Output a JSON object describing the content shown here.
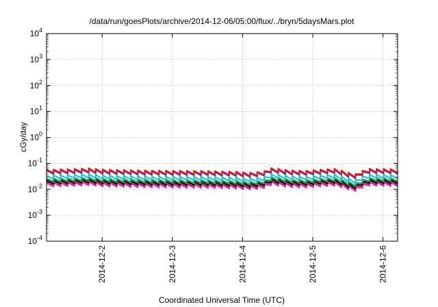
{
  "chart_data": {
    "type": "line",
    "title": "/data/run/goesPlots/archive/2014-12-06/05:00/flux/../bryn/5daysMars.plot",
    "xlabel": "Coordinated Universal Time (UTC)",
    "ylabel": "cGy/day",
    "yscale": "log",
    "ylim": [
      0.0001,
      10000
    ],
    "y_ticks": [
      {
        "base": "10",
        "exp": "-4"
      },
      {
        "base": "10",
        "exp": "-3"
      },
      {
        "base": "10",
        "exp": "-2"
      },
      {
        "base": "10",
        "exp": "-1"
      },
      {
        "base": "10",
        "exp": "0"
      },
      {
        "base": "10",
        "exp": "1"
      },
      {
        "base": "10",
        "exp": "2"
      },
      {
        "base": "10",
        "exp": "3"
      },
      {
        "base": "10",
        "exp": "4"
      }
    ],
    "xlim": [
      "2014-12-01T05:00",
      "2014-12-06T05:00"
    ],
    "x_ticks": [
      "2014-12-2",
      "2014-12-3",
      "2014-12-4",
      "2014-12-5",
      "2014-12-6"
    ],
    "x_tick_dates": [
      "2014-12-02",
      "2014-12-03",
      "2014-12-04",
      "2014-12-05",
      "2014-12-06"
    ],
    "grid": true,
    "cycle_hours": 2.4,
    "sawtooth_ratio": 0.72,
    "envelope": [
      {
        "t": "2014-12-01T05:00",
        "v": 0.055
      },
      {
        "t": "2014-12-01T14:00",
        "v": 0.058
      },
      {
        "t": "2014-12-01T20:00",
        "v": 0.062
      },
      {
        "t": "2014-12-02T00:00",
        "v": 0.056
      },
      {
        "t": "2014-12-02T12:00",
        "v": 0.052
      },
      {
        "t": "2014-12-03T00:00",
        "v": 0.05
      },
      {
        "t": "2014-12-03T12:00",
        "v": 0.049
      },
      {
        "t": "2014-12-03T22:00",
        "v": 0.046
      },
      {
        "t": "2014-12-04T02:00",
        "v": 0.042
      },
      {
        "t": "2014-12-04T07:00",
        "v": 0.046
      },
      {
        "t": "2014-12-04T10:00",
        "v": 0.064
      },
      {
        "t": "2014-12-04T16:00",
        "v": 0.052
      },
      {
        "t": "2014-12-04T22:00",
        "v": 0.05
      },
      {
        "t": "2014-12-05T02:00",
        "v": 0.055
      },
      {
        "t": "2014-12-05T08:00",
        "v": 0.06
      },
      {
        "t": "2014-12-05T11:00",
        "v": 0.046
      },
      {
        "t": "2014-12-05T14:00",
        "v": 0.036
      },
      {
        "t": "2014-12-05T16:00",
        "v": 0.04
      },
      {
        "t": "2014-12-05T18:00",
        "v": 0.06
      },
      {
        "t": "2014-12-06T05:00",
        "v": 0.057
      }
    ],
    "series": [
      {
        "color": "#e8191a",
        "scale": 1.05
      },
      {
        "color": "#2a3cd8",
        "scale": 0.97
      },
      {
        "color": "#20c1c9",
        "scale": 0.62
      },
      {
        "color": "#1c9a5a",
        "scale": 0.48
      },
      {
        "color": "#111111",
        "scale": 0.41
      },
      {
        "color": "#a8322a",
        "scale": 0.37
      },
      {
        "color": "#e41ec8",
        "scale": 0.32
      }
    ]
  }
}
